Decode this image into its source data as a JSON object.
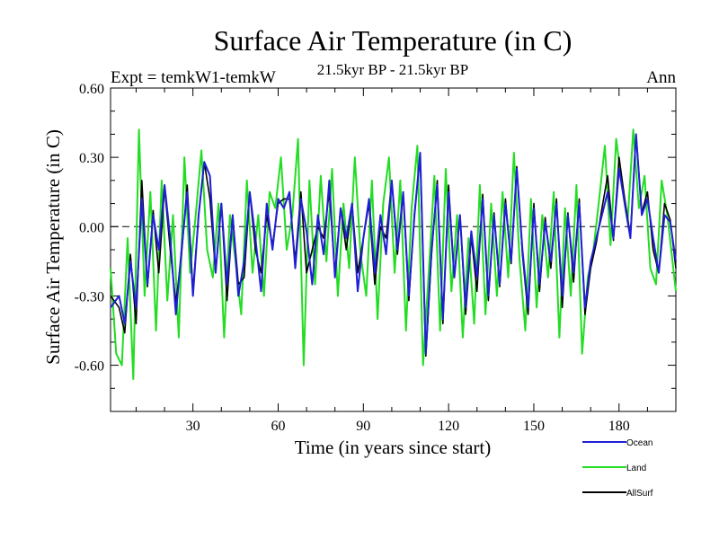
{
  "chart_data": {
    "type": "line",
    "title": "Surface Air Temperature (in C)",
    "left_label": "Expt = temkW1-temkW",
    "center_label": "21.5kyr BP - 21.5kyr BP",
    "right_label": "Ann",
    "xlabel": "Time (in years since start)",
    "ylabel": "Surface Air Temperature (in C)",
    "xlim": [
      1,
      200
    ],
    "ylim": [
      -0.8,
      0.6
    ],
    "xticks": [
      30,
      60,
      90,
      120,
      150,
      180
    ],
    "xtick_labels": [
      "30",
      "60",
      "90",
      "120",
      "150",
      "180"
    ],
    "yticks": [
      0.6,
      0.3,
      0.0,
      -0.3,
      -0.6
    ],
    "ytick_labels": [
      "0.60",
      "0.30",
      "0.00",
      "-0.30",
      "-0.60"
    ],
    "zero_line": "dashed",
    "legend_placement": "bottom-right",
    "series": [
      {
        "name": "Ocean",
        "color": "#1f1fd6",
        "x": [
          1,
          4,
          6,
          8,
          10,
          12,
          14,
          16,
          18,
          20,
          22,
          24,
          26,
          28,
          30,
          32,
          34,
          36,
          38,
          40,
          42,
          44,
          46,
          48,
          50,
          52,
          54,
          56,
          58,
          60,
          62,
          64,
          66,
          68,
          70,
          72,
          74,
          76,
          78,
          80,
          82,
          84,
          86,
          88,
          90,
          92,
          94,
          96,
          98,
          100,
          102,
          104,
          106,
          108,
          110,
          112,
          114,
          116,
          118,
          120,
          122,
          124,
          126,
          128,
          130,
          132,
          134,
          136,
          138,
          140,
          142,
          144,
          146,
          148,
          150,
          152,
          154,
          156,
          158,
          160,
          162,
          164,
          166,
          168,
          170,
          172,
          174,
          176,
          178,
          180,
          182,
          184,
          186,
          188,
          190,
          192,
          194,
          196,
          198,
          200
        ],
        "y": [
          -0.35,
          -0.3,
          -0.42,
          -0.15,
          -0.35,
          0.12,
          -0.25,
          0.05,
          -0.1,
          0.18,
          -0.05,
          -0.38,
          -0.1,
          0.15,
          -0.3,
          0.05,
          0.28,
          0.22,
          -0.2,
          0.1,
          -0.25,
          0.05,
          -0.3,
          -0.15,
          0.15,
          -0.05,
          -0.28,
          0.1,
          -0.1,
          0.12,
          0.08,
          0.15,
          -0.18,
          0.12,
          -0.02,
          -0.25,
          0.05,
          -0.12,
          0.2,
          -0.22,
          0.08,
          -0.05,
          0.1,
          -0.28,
          -0.05,
          0.12,
          -0.2,
          0.05,
          -0.12,
          0.2,
          -0.1,
          0.15,
          -0.3,
          0.05,
          0.32,
          -0.55,
          -0.1,
          0.18,
          -0.4,
          0.15,
          -0.22,
          0.05,
          -0.35,
          -0.02,
          -0.22,
          0.12,
          -0.3,
          0.05,
          -0.25,
          0.1,
          -0.15,
          0.25,
          -0.1,
          -0.35,
          0.08,
          -0.25,
          0.02,
          -0.15,
          0.1,
          -0.3,
          0.05,
          -0.2,
          0.1,
          -0.35,
          -0.15,
          -0.05,
          0.05,
          0.15,
          -0.05,
          0.25,
          0.1,
          -0.05,
          0.4,
          0.05,
          0.12,
          -0.05,
          -0.2,
          0.05,
          0.02,
          -0.15
        ]
      },
      {
        "name": "Land",
        "color": "#22dd22",
        "x": [
          1,
          3,
          5,
          7,
          9,
          11,
          13,
          15,
          17,
          19,
          21,
          23,
          25,
          27,
          29,
          31,
          33,
          35,
          37,
          39,
          41,
          43,
          45,
          47,
          49,
          51,
          53,
          55,
          57,
          59,
          61,
          63,
          65,
          67,
          69,
          71,
          73,
          75,
          77,
          79,
          81,
          83,
          85,
          87,
          89,
          91,
          93,
          95,
          97,
          99,
          101,
          103,
          105,
          107,
          109,
          111,
          113,
          115,
          117,
          119,
          121,
          123,
          125,
          127,
          129,
          131,
          133,
          135,
          137,
          139,
          141,
          143,
          145,
          147,
          149,
          151,
          153,
          155,
          157,
          159,
          161,
          163,
          165,
          167,
          169,
          171,
          173,
          175,
          177,
          179,
          181,
          183,
          185,
          187,
          189,
          191,
          193,
          195,
          197,
          200
        ],
        "y": [
          -0.18,
          -0.55,
          -0.6,
          -0.05,
          -0.66,
          0.42,
          -0.3,
          0.15,
          -0.45,
          0.2,
          -0.32,
          0.05,
          -0.48,
          0.3,
          -0.2,
          0.05,
          0.33,
          -0.1,
          -0.22,
          0.1,
          -0.48,
          0.05,
          -0.15,
          -0.38,
          0.2,
          -0.2,
          0.05,
          -0.3,
          0.15,
          0.08,
          0.3,
          -0.1,
          0.05,
          0.38,
          -0.6,
          0.2,
          -0.25,
          0.22,
          -0.15,
          0.25,
          -0.3,
          0.1,
          -0.18,
          0.3,
          -0.12,
          -0.3,
          0.2,
          -0.4,
          0.1,
          0.3,
          -0.2,
          0.2,
          -0.45,
          0.08,
          0.35,
          -0.6,
          -0.2,
          0.22,
          -0.45,
          0.25,
          -0.28,
          0.05,
          -0.48,
          -0.05,
          -0.42,
          0.18,
          -0.38,
          0.1,
          -0.3,
          0.15,
          -0.22,
          0.32,
          -0.15,
          -0.45,
          0.12,
          -0.35,
          0.05,
          -0.22,
          0.15,
          -0.48,
          0.08,
          -0.3,
          0.18,
          -0.55,
          -0.22,
          -0.1,
          0.12,
          0.35,
          -0.08,
          0.38,
          0.18,
          0.02,
          0.42,
          0.08,
          0.22,
          -0.18,
          -0.25,
          0.2,
          0.05,
          -0.28
        ]
      },
      {
        "name": "AllSurf",
        "color": "#000000",
        "x": [
          1,
          4,
          6,
          8,
          10,
          12,
          14,
          16,
          18,
          20,
          22,
          24,
          26,
          28,
          30,
          32,
          34,
          36,
          38,
          40,
          42,
          44,
          46,
          48,
          50,
          52,
          54,
          56,
          58,
          60,
          62,
          64,
          66,
          68,
          70,
          72,
          74,
          76,
          78,
          80,
          82,
          84,
          86,
          88,
          90,
          92,
          94,
          96,
          98,
          100,
          102,
          104,
          106,
          108,
          110,
          112,
          114,
          116,
          118,
          120,
          122,
          124,
          126,
          128,
          130,
          132,
          134,
          136,
          138,
          140,
          142,
          144,
          146,
          148,
          150,
          152,
          154,
          156,
          158,
          160,
          162,
          164,
          166,
          168,
          170,
          172,
          174,
          176,
          178,
          180,
          182,
          184,
          186,
          188,
          190,
          192,
          194,
          196,
          198,
          200
        ],
        "y": [
          -0.3,
          -0.35,
          -0.46,
          -0.12,
          -0.42,
          0.2,
          -0.26,
          0.07,
          -0.2,
          0.17,
          -0.1,
          -0.33,
          -0.12,
          0.18,
          -0.28,
          0.05,
          0.28,
          0.12,
          -0.2,
          0.1,
          -0.32,
          0.05,
          -0.25,
          -0.22,
          0.15,
          -0.1,
          -0.2,
          0.05,
          -0.08,
          0.1,
          0.12,
          0.12,
          -0.15,
          0.15,
          -0.2,
          -0.1,
          0.0,
          -0.05,
          0.15,
          -0.2,
          0.08,
          -0.1,
          0.1,
          -0.2,
          -0.05,
          0.1,
          -0.25,
          0.0,
          -0.05,
          0.2,
          -0.12,
          0.14,
          -0.32,
          0.06,
          0.3,
          -0.56,
          -0.12,
          0.2,
          -0.42,
          0.18,
          -0.22,
          0.05,
          -0.38,
          -0.04,
          -0.28,
          0.14,
          -0.32,
          0.06,
          -0.26,
          0.12,
          -0.16,
          0.26,
          -0.12,
          -0.38,
          0.1,
          -0.28,
          0.04,
          -0.18,
          0.12,
          -0.35,
          0.06,
          -0.24,
          0.12,
          -0.38,
          -0.18,
          -0.07,
          0.08,
          0.22,
          -0.06,
          0.3,
          0.12,
          -0.04,
          0.4,
          0.06,
          0.15,
          -0.1,
          -0.2,
          0.1,
          0.03,
          -0.18
        ]
      }
    ]
  }
}
